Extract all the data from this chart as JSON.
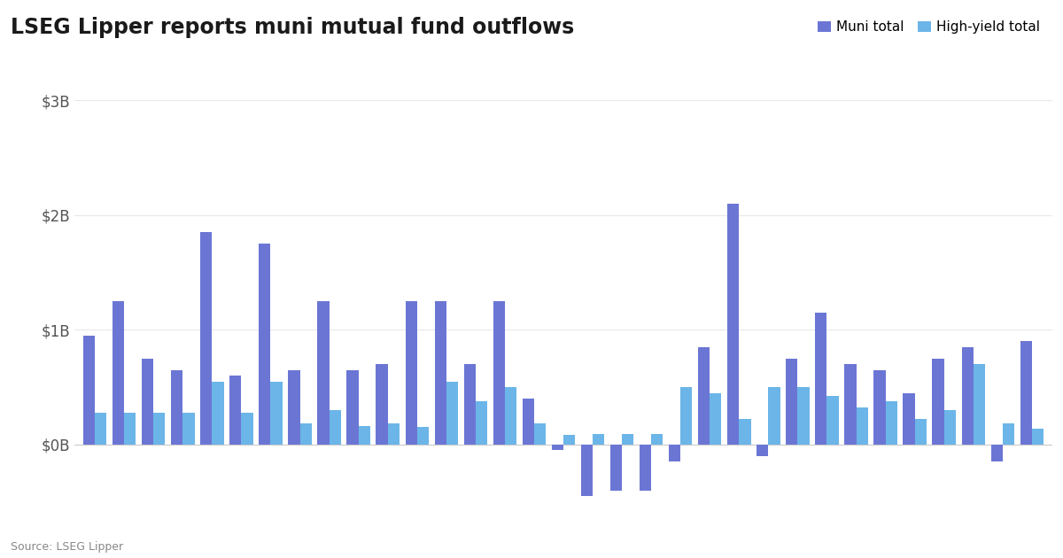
{
  "title": "LSEG Lipper reports muni mutual fund outflows",
  "source": "Source: LSEG Lipper",
  "legend_labels": [
    "Muni total",
    "High-yield total"
  ],
  "muni_color": "#6B76D4",
  "hy_color": "#6BB5E8",
  "background_color": "#ffffff",
  "ylim": [
    -0.65,
    3.0
  ],
  "yticks": [
    0,
    1,
    2,
    3
  ],
  "ytick_labels": [
    "$0B",
    "$1B",
    "$2B",
    "$3B"
  ],
  "muni_values": [
    0.95,
    1.25,
    0.75,
    0.65,
    1.85,
    0.6,
    1.75,
    0.65,
    1.25,
    0.65,
    0.7,
    1.25,
    1.25,
    0.7,
    1.25,
    0.4,
    -0.05,
    -0.45,
    -0.4,
    -0.4,
    -0.15,
    0.85,
    2.1,
    -0.1,
    0.75,
    1.15,
    0.7,
    0.65,
    0.45,
    0.75,
    0.85,
    -0.15,
    0.9
  ],
  "hy_values": [
    0.28,
    0.28,
    0.28,
    0.28,
    0.55,
    0.28,
    0.55,
    0.18,
    0.3,
    0.16,
    0.18,
    0.15,
    0.55,
    0.38,
    0.5,
    0.18,
    0.08,
    0.09,
    0.09,
    0.09,
    0.5,
    0.45,
    0.22,
    0.5,
    0.5,
    0.42,
    0.32,
    0.38,
    0.22,
    0.3,
    0.7,
    0.18,
    0.14
  ]
}
